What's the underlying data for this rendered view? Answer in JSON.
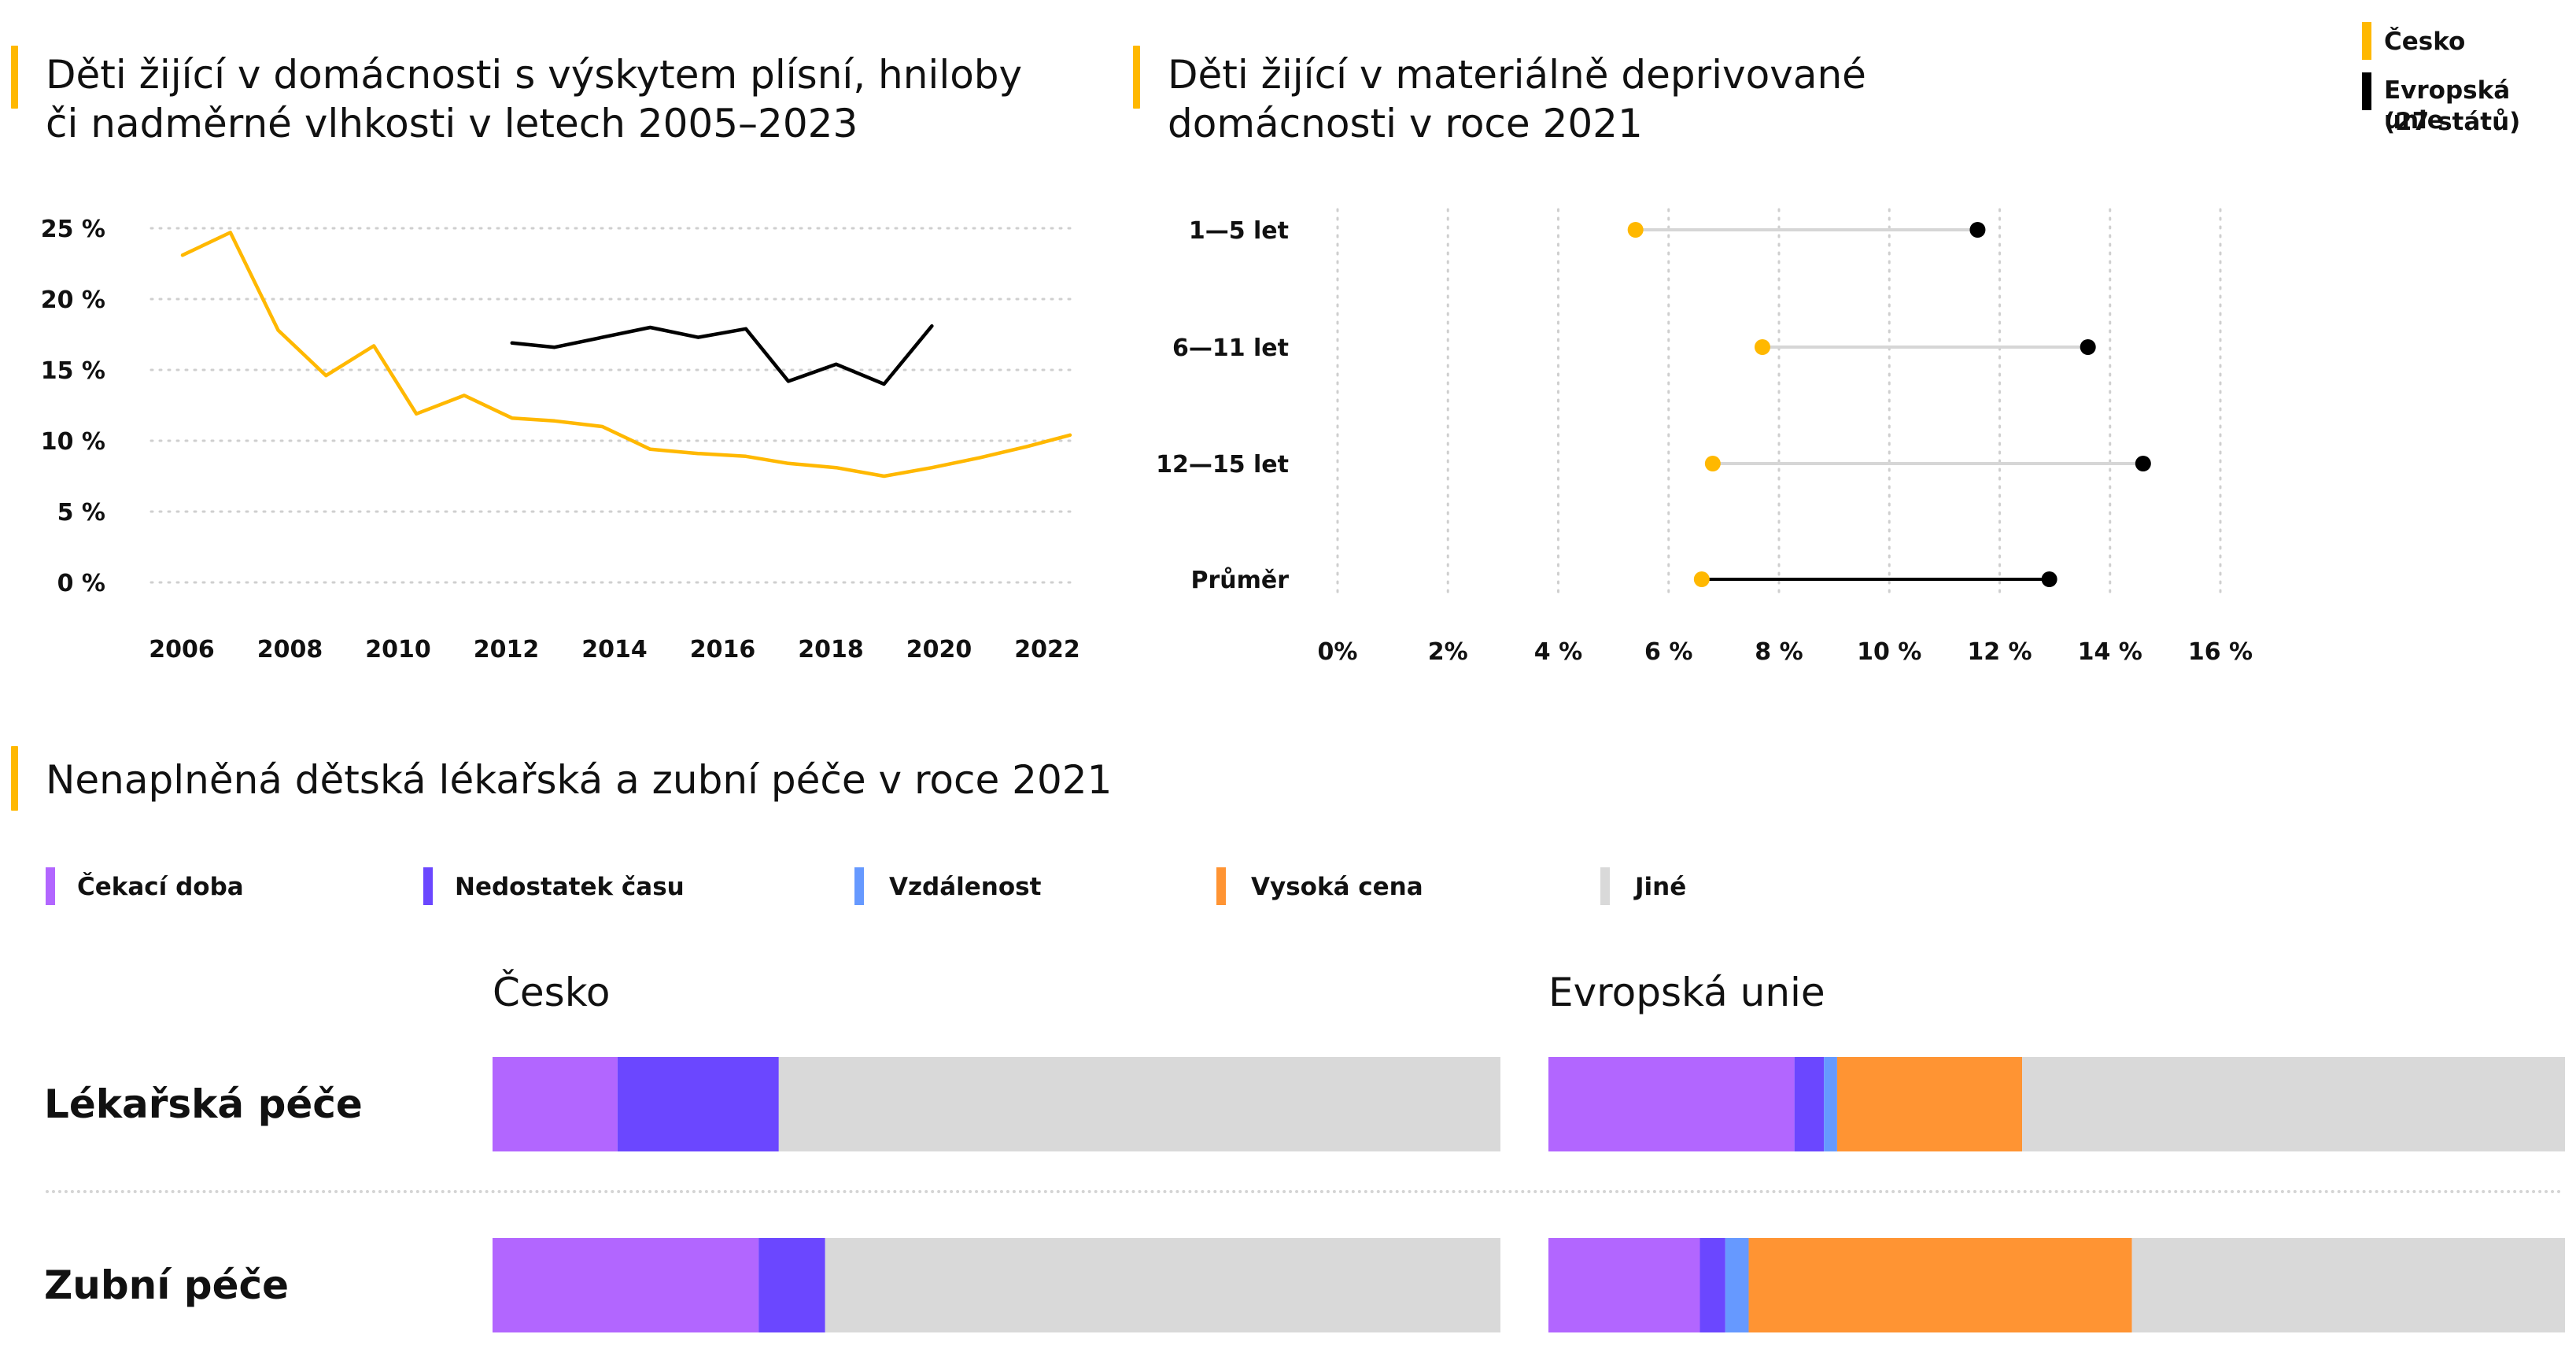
{
  "legend_top": {
    "items": [
      {
        "label": "Česko",
        "color": "#FFB800"
      },
      {
        "label": "Evropská unie (27 států)",
        "lines": [
          "Evropská unie",
          "(27 států)"
        ],
        "color": "#000000"
      }
    ]
  },
  "chart_data": [
    {
      "type": "line",
      "title_lines": [
        "Děti žijící v domácnosti s výskytem plísní, hniloby",
        "či nadměrné vlhkosti v letech 2005–2023"
      ],
      "title": "Děti žijící v domácnosti s výskytem plísní, hniloby či nadměrné vlhkosti v letech 2005–2023",
      "x_ticks": [
        "2006",
        "2008",
        "2010",
        "2012",
        "2014",
        "2016",
        "2018",
        "2020",
        "2022"
      ],
      "y_ticks": [
        "0 %",
        "5 %",
        "10 %",
        "15 %",
        "20 %",
        "25 %"
      ],
      "xlim": [
        2005.4,
        2022.1
      ],
      "ylim": [
        0,
        25
      ],
      "grid": true,
      "series": [
        {
          "name": "Česko",
          "color": "#FFB800",
          "x": [
            2005.4,
            2006.3,
            2007.2,
            2008.1,
            2009.0,
            2009.8,
            2010.7,
            2011.6,
            2012.4,
            2013.3,
            2014.2,
            2015.1,
            2016.0,
            2016.8,
            2017.7,
            2018.6,
            2019.5,
            2020.4,
            2021.3,
            2022.1
          ],
          "values": [
            23.1,
            24.7,
            17.8,
            14.6,
            16.7,
            11.9,
            13.2,
            11.6,
            11.4,
            11.0,
            9.4,
            9.1,
            8.9,
            8.4,
            8.1,
            7.5,
            8.1,
            8.8,
            9.6,
            10.4
          ]
        },
        {
          "name": "Evropská unie (27 států)",
          "color": "#000000",
          "x": [
            2011.6,
            2012.4,
            2013.3,
            2014.2,
            2015.1,
            2016.0,
            2016.8,
            2017.7,
            2018.6,
            2019.5
          ],
          "values": [
            16.9,
            16.6,
            17.3,
            18.0,
            17.3,
            17.9,
            14.2,
            15.4,
            14.0,
            18.1
          ]
        }
      ]
    },
    {
      "type": "dumbbell",
      "title_lines": [
        "Děti žijící v materiálně deprivované",
        "domácnosti v roce 2021"
      ],
      "title": "Děti žijící v materiálně deprivované domácnosti v roce 2021",
      "categories": [
        "1—5 let",
        "6—11 let",
        "12—15 let",
        "Průměr"
      ],
      "x_ticks": [
        "0%",
        "2%",
        "4 %",
        "6 %",
        "8 %",
        "10 %",
        "12 %",
        "14 %",
        "16 %"
      ],
      "xlim": [
        0,
        16
      ],
      "grid": true,
      "series": [
        {
          "name": "Česko",
          "color": "#FFB800",
          "values": [
            5.4,
            7.7,
            6.8,
            6.6
          ]
        },
        {
          "name": "Evropská unie (27 států)",
          "color": "#000000",
          "values": [
            11.6,
            13.6,
            14.6,
            12.9
          ]
        }
      ]
    },
    {
      "type": "stacked-bar",
      "title": "Nenaplněná dětská lékařská a zubní péče v roce 2021",
      "panels": [
        "Česko",
        "Evropská unie"
      ],
      "categories": [
        "Lékařská péče",
        "Zubní péče"
      ],
      "series": [
        {
          "name": "Čekací doba",
          "color": "#B266FF",
          "cesko": [
            12.4,
            26.4
          ],
          "eu": [
            24.2,
            14.9
          ]
        },
        {
          "name": "Nedostatek času",
          "color": "#6B47FF",
          "cesko": [
            16.0,
            6.6
          ],
          "eu": [
            2.9,
            2.5
          ]
        },
        {
          "name": "Vzdálenost",
          "color": "#6699FF",
          "cesko": [
            0,
            0
          ],
          "eu": [
            1.3,
            2.3
          ]
        },
        {
          "name": "Vysoká cena",
          "color": "#FF9433",
          "cesko": [
            0,
            0
          ],
          "eu": [
            18.2,
            37.7
          ]
        },
        {
          "name": "Jiné",
          "color": "#D9D9D9",
          "cesko": [
            71.6,
            67.0
          ],
          "eu": [
            53.4,
            42.6
          ]
        }
      ]
    }
  ]
}
